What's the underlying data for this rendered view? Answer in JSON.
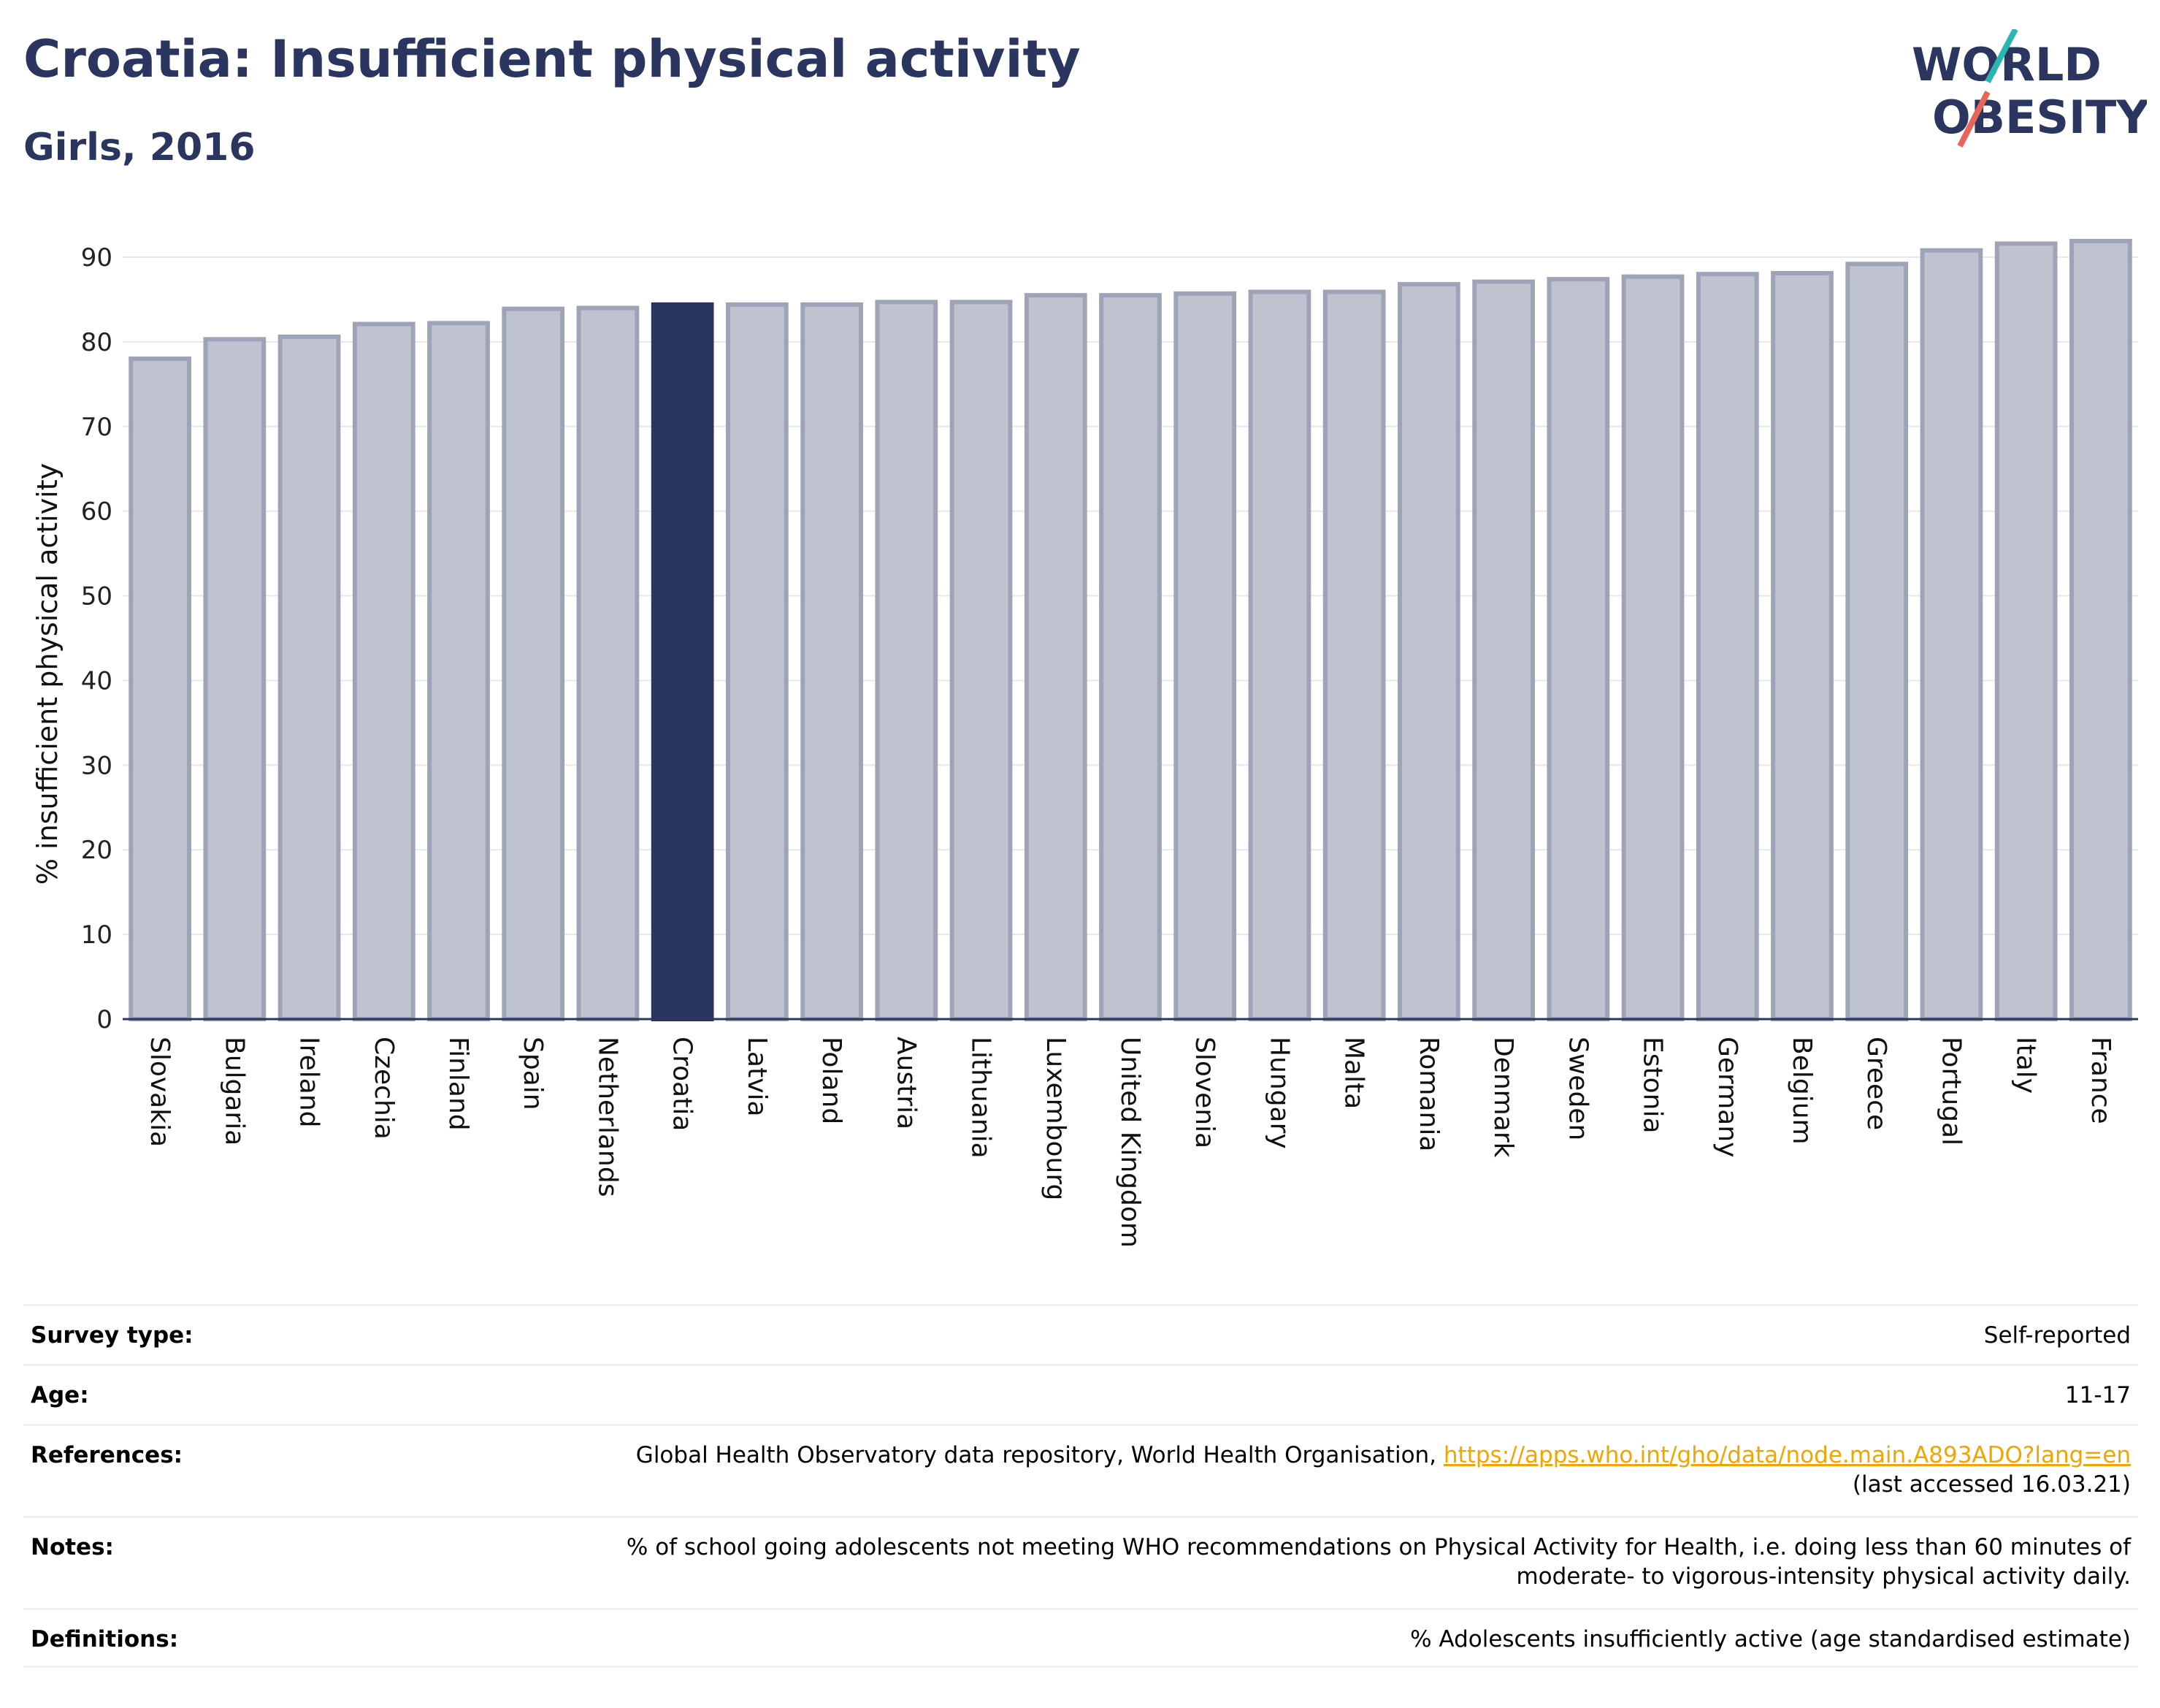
{
  "header": {
    "title": "Croatia: Insufficient physical activity",
    "subtitle": "Girls, 2016"
  },
  "logo": {
    "line1": "WORLD",
    "line2": "OBESITY",
    "accent_teal": "#2bb7b0",
    "accent_red": "#e8655a"
  },
  "colors": {
    "highlight": "#2a3560",
    "bar": "#bfc2cf",
    "bar_border": "#9ea3b8"
  },
  "chart_data": {
    "type": "bar",
    "title": "Croatia: Insufficient physical activity",
    "subtitle": "Girls, 2016",
    "ylabel": "% insufficient physical activity",
    "xlabel": "",
    "ylim": [
      0,
      92
    ],
    "yticks": [
      0,
      10,
      20,
      30,
      40,
      50,
      60,
      70,
      80,
      90
    ],
    "grid": true,
    "highlight": "Croatia",
    "categories": [
      "Slovakia",
      "Bulgaria",
      "Ireland",
      "Czechia",
      "Finland",
      "Spain",
      "Netherlands",
      "Croatia",
      "Latvia",
      "Poland",
      "Austria",
      "Lithuania",
      "Luxembourg",
      "United Kingdom",
      "Slovenia",
      "Hungary",
      "Malta",
      "Romania",
      "Denmark",
      "Sweden",
      "Estonia",
      "Germany",
      "Belgium",
      "Greece",
      "Portugal",
      "Italy",
      "France"
    ],
    "values": [
      78.0,
      80.3,
      80.6,
      82.1,
      82.2,
      83.9,
      84.0,
      84.4,
      84.4,
      84.4,
      84.7,
      84.7,
      85.5,
      85.5,
      85.7,
      85.9,
      85.9,
      86.8,
      87.1,
      87.4,
      87.7,
      88.0,
      88.1,
      89.2,
      90.8,
      91.6,
      91.9
    ]
  },
  "info": {
    "survey_type_label": "Survey type:",
    "survey_type_value": "Self-reported",
    "age_label": "Age:",
    "age_value": "11-17",
    "references_label": "References:",
    "references_text": "Global Health Observatory data repository, World Health Organisation,",
    "references_link": "https://apps.who.int/gho/data/node.main.A893ADO?lang=en",
    "references_accessed": "(last accessed 16.03.21)",
    "notes_label": "Notes:",
    "notes_line1": "% of school going adolescents not meeting WHO recommendations on Physical Activity for Health, i.e. doing less than 60 minutes of",
    "notes_line2": "moderate- to vigorous-intensity physical activity daily.",
    "definitions_label": "Definitions:",
    "definitions_value": "% Adolescents insufficiently active (age standardised estimate)"
  }
}
